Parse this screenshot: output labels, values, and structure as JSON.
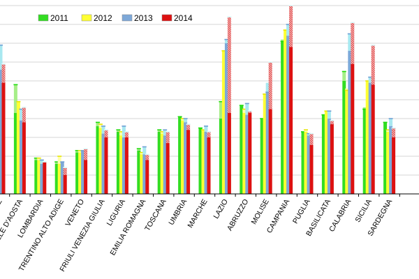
{
  "chart_data": {
    "type": "bar",
    "title": "",
    "xlabel": "",
    "ylabel": "",
    "ylim": [
      0,
      100
    ],
    "grid": true,
    "legend_position": "top-left",
    "categories": [
      "PIEMONTE",
      "VALLE D'AOSTA",
      "LOMBARDIA",
      "TRENTINO ALTO ADIGE",
      "VENETO",
      "FRIULI VENEZIA GIULIA",
      "LIGURIA",
      "EMILIA ROMAGNA",
      "TOSCANA",
      "UMBRIA",
      "MARCHE",
      "LAZIO",
      "ABRUZZO",
      "MOLISE",
      "CAMPANIA",
      "PUGLIA",
      "BASILICATA",
      "CALABRIA",
      "SICILIA",
      "SARDEGNA"
    ],
    "tick_labels": [
      "TE",
      "ALLE D'AOSTA",
      "LOMBARDIA",
      "TRENTINO ALTO ADIGE",
      "VENETO",
      "FRIULI VENEZIA GIULIA",
      "LIGURIA",
      "EMILIA ROMAGNA",
      "TOSCANA",
      "UMBRIA",
      "MARCHE",
      "LAZIO",
      "ABRUZZO",
      "MOLISE",
      "CAMPANIA",
      "PUGLIA",
      "BASILICATA",
      "CALABRIA",
      "SICILIA",
      "SARDEGNA"
    ],
    "series": [
      {
        "name": "2011",
        "color": "#33dd22",
        "values": [
          52,
          58,
          19,
          17,
          23,
          38,
          34,
          24,
          34,
          41,
          35,
          49,
          47,
          40,
          81,
          33,
          42,
          65,
          45,
          38
        ]
      },
      {
        "name": "2012",
        "color": "#ffff33",
        "values": [
          60,
          49,
          19,
          20,
          23,
          37,
          33,
          22,
          33,
          40,
          34,
          76,
          45,
          53,
          87,
          34,
          44,
          55,
          60,
          34
        ]
      },
      {
        "name": "2013",
        "color": "#7da8d8",
        "values": [
          79,
          45,
          18,
          17,
          23,
          36,
          36,
          25,
          34,
          40,
          36,
          82,
          48,
          54,
          90,
          32,
          44,
          85,
          62,
          40
        ]
      },
      {
        "name": "2014",
        "color": "#dd1111",
        "values": [
          69,
          46,
          17,
          14,
          24,
          34,
          33,
          21,
          33,
          37,
          33,
          94,
          44,
          70,
          100,
          32,
          39,
          91,
          79,
          35
        ]
      }
    ],
    "base_values": [
      [
        52,
        43,
        18,
        16,
        22,
        36,
        33,
        23,
        33,
        41,
        35,
        40,
        47,
        40,
        82,
        33,
        42,
        60,
        46,
        38
      ],
      [
        62,
        49,
        18,
        16,
        22,
        35,
        31,
        21,
        32,
        39,
        34,
        76,
        43,
        53,
        87,
        33,
        44,
        56,
        60,
        33
      ],
      [
        66,
        39,
        16,
        17,
        23,
        32,
        30,
        21,
        31,
        38,
        33,
        80,
        42,
        59,
        84,
        31,
        40,
        76,
        59,
        36
      ],
      [
        59,
        38,
        17,
        10,
        18,
        30,
        30,
        18,
        27,
        34,
        30,
        43,
        43,
        45,
        78,
        26,
        37,
        69,
        58,
        30
      ]
    ]
  }
}
